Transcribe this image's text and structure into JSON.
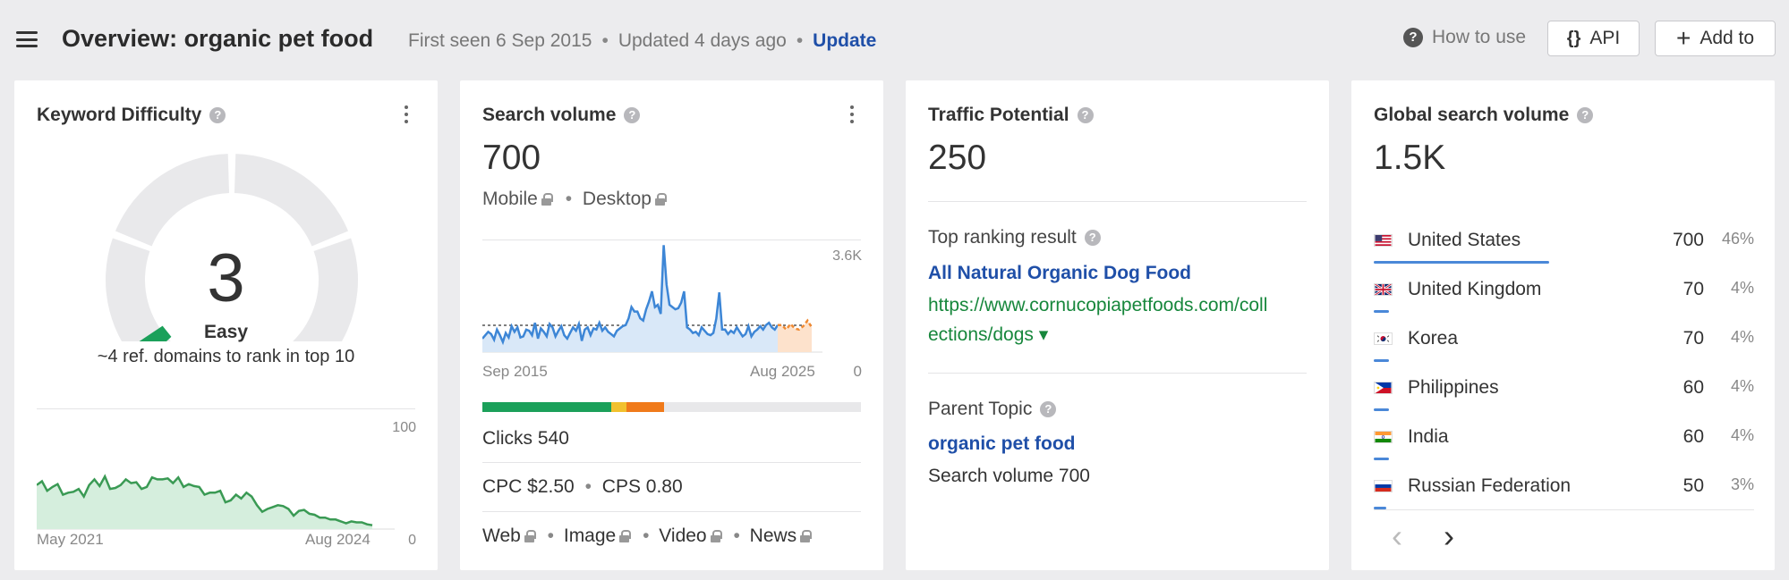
{
  "header": {
    "title": "Overview: organic pet food",
    "first_seen": "First seen 6 Sep 2015",
    "updated": "Updated 4 days ago",
    "update_link": "Update",
    "how_to_use": "How to use",
    "api_label": "API",
    "add_label": "Add to"
  },
  "kd": {
    "title": "Keyword Difficulty",
    "value": "3",
    "rating": "Easy",
    "desc": "~4 ref. domains to rank in top 10",
    "axis_max": "100",
    "axis_min": "0",
    "x_start": "May 2021",
    "x_end": "Aug 2024",
    "gauge_color": "#1ba05a",
    "trend": [
      46,
      50,
      40,
      44,
      47,
      36,
      38,
      39,
      42,
      34,
      46,
      52,
      45,
      55,
      42,
      43,
      46,
      52,
      48,
      49,
      42,
      44,
      54,
      52,
      52,
      53,
      48,
      54,
      44,
      47,
      45,
      44,
      36,
      38,
      38,
      40,
      28,
      30,
      36,
      32,
      38,
      34,
      25,
      18,
      21,
      23,
      25,
      24,
      21,
      14,
      19,
      20,
      16,
      15,
      12,
      12,
      10,
      10,
      8,
      6,
      8,
      7,
      7,
      5,
      4
    ]
  },
  "sv": {
    "title": "Search volume",
    "value": "700",
    "mobile": "Mobile",
    "desktop": "Desktop",
    "y_top": "3.6K",
    "y_zero": "0",
    "x_start": "Sep 2015",
    "x_end": "Aug 2025",
    "trend": [
      0.12,
      0.15,
      0.18,
      0.16,
      0.11,
      0.2,
      0.15,
      0.09,
      0.17,
      0.13,
      0.23,
      0.18,
      0.22,
      0.13,
      0.14,
      0.2,
      0.19,
      0.15,
      0.26,
      0.12,
      0.21,
      0.18,
      0.14,
      0.25,
      0.22,
      0.14,
      0.19,
      0.23,
      0.15,
      0.12,
      0.17,
      0.22,
      0.19,
      0.25,
      0.1,
      0.2,
      0.22,
      0.15,
      0.21,
      0.2,
      0.26,
      0.19,
      0.22,
      0.18,
      0.16,
      0.14,
      0.19,
      0.21,
      0.23,
      0.24,
      0.3,
      0.4,
      0.36,
      0.36,
      0.3,
      0.28,
      0.38,
      0.45,
      0.54,
      0.4,
      0.42,
      0.34,
      0.95,
      0.6,
      0.42,
      0.4,
      0.38,
      0.39,
      0.44,
      0.54,
      0.22,
      0.2,
      0.17,
      0.18,
      0.15,
      0.22,
      0.19,
      0.16,
      0.15,
      0.17,
      0.3,
      0.53,
      0.2,
      0.2,
      0.16,
      0.19,
      0.17,
      0.22,
      0.18,
      0.14,
      0.16,
      0.23,
      0.14,
      0.18,
      0.2,
      0.23,
      0.2,
      0.24,
      0.26,
      0.22,
      0.2,
      0.24
    ],
    "forecast": [
      0.24,
      0.2,
      0.25,
      0.21,
      0.2,
      0.23,
      0.28,
      0.22
    ],
    "clicks": "Clicks 540",
    "cpc": "CPC $2.50",
    "cps": "CPS 0.80",
    "serp_types": [
      "Web",
      "Image",
      "Video",
      "News"
    ],
    "bar_segments": [
      {
        "color": "#1ba05a",
        "fraction": 0.34
      },
      {
        "color": "#f2c12e",
        "fraction": 0.04
      },
      {
        "color": "#f07a1a",
        "fraction": 0.1
      },
      {
        "color": "#e8e8ea",
        "fraction": 0.52
      }
    ]
  },
  "tp": {
    "title": "Traffic Potential",
    "value": "250",
    "top_label": "Top ranking result",
    "top_title": "All Natural Organic Dog Food",
    "url_line1": "https://www.cornucopiapetfoods.com/coll",
    "url_line2": "ections/dogs ▾",
    "parent_label": "Parent Topic",
    "parent_topic": "organic pet food",
    "parent_volume": "Search volume 700"
  },
  "gsv": {
    "title": "Global search volume",
    "value": "1.5K",
    "countries": [
      {
        "name": "United States",
        "volume": "700",
        "percent": "46%",
        "share": 0.46
      },
      {
        "name": "United Kingdom",
        "volume": "70",
        "percent": "4%",
        "share": 0.04
      },
      {
        "name": "Korea",
        "volume": "70",
        "percent": "4%",
        "share": 0.04
      },
      {
        "name": "Philippines",
        "volume": "60",
        "percent": "4%",
        "share": 0.04
      },
      {
        "name": "India",
        "volume": "60",
        "percent": "4%",
        "share": 0.04
      },
      {
        "name": "Russian Federation",
        "volume": "50",
        "percent": "3%",
        "share": 0.03
      }
    ],
    "prev": "‹",
    "next": "›"
  }
}
